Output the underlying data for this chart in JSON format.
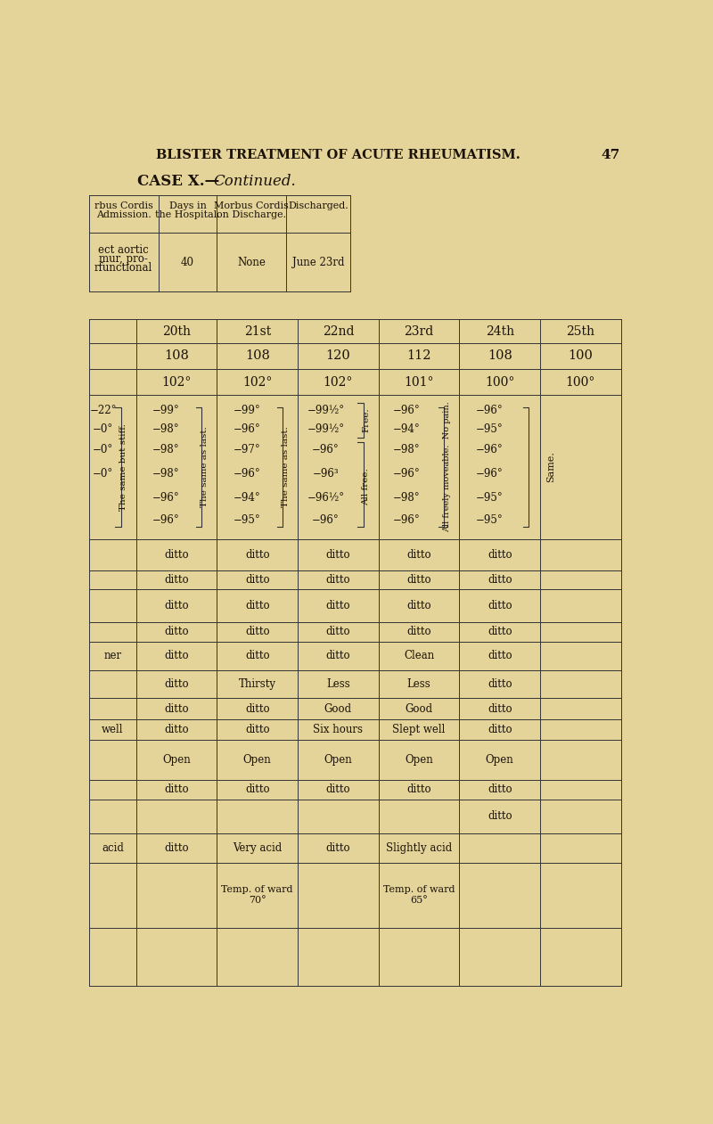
{
  "bg_color": "#e5d49a",
  "page_title": "BLISTER TREATMENT OF ACUTE RHEUMATISM.",
  "page_number": "47",
  "case_title_bold": "CASE X.—",
  "case_title_italic": "Continued.",
  "top_headers": [
    "rbus Cordis\nAdmission.",
    "Days in\nthe Hospital.",
    "Morbus Cordis\non Discharge.",
    "Discharged."
  ],
  "top_row": [
    "ect aortic\nmur, pro-\nrfunctional",
    "40",
    "None",
    "June 23rd"
  ],
  "date_headers": [
    "20th",
    "21st",
    "22nd",
    "23rd",
    "24th",
    "25th"
  ],
  "pulse_row": [
    "108",
    "108",
    "120",
    "112",
    "108",
    "100"
  ],
  "temp_row": [
    "102°",
    "102°",
    "102°",
    "101°",
    "100°",
    "100°"
  ],
  "col20_temps": [
    "−22°",
    "−0°",
    "−0°",
    "−0°",
    " ",
    " "
  ],
  "col21_temps": [
    "−99°",
    "−98°",
    "−98°",
    "−98°",
    "−96°",
    "−96°"
  ],
  "col21_note": "The same but stiff.",
  "col22_temps": [
    "−99°",
    "−96°",
    "−97°",
    "−96°",
    "−94°",
    "−95°"
  ],
  "col22_note": "The same as last.",
  "col23_temps": [
    "−99½°",
    "−99½°",
    "−96°",
    "−96³",
    "−96½°",
    "−96°"
  ],
  "col23_note": "The same as last.",
  "col23_aside1": "Free.",
  "col23_aside2": "All free.",
  "col24_temps": [
    "−96°",
    "−94°",
    "−98°",
    "−96°",
    "−98°",
    "−96°"
  ],
  "col24_note": "All freely moveable.  No pain.",
  "col25_temps": [
    "−96°",
    "−95°",
    "−96°",
    "−96°",
    "−95°",
    "−95°"
  ],
  "col25_note": "Same.",
  "lower_rows": [
    [
      "",
      "ditto",
      "ditto",
      "ditto",
      "ditto",
      "ditto"
    ],
    [
      "",
      "ditto",
      "ditto",
      "ditto",
      "ditto",
      "ditto"
    ],
    [
      "ner",
      "ditto",
      "ditto",
      "ditto",
      "Clean",
      "ditto"
    ],
    [
      "",
      "ditto",
      "Thirsty",
      "Less",
      "Less",
      "ditto"
    ],
    [
      "",
      "ditto",
      "ditto",
      "Good",
      "Good",
      "ditto"
    ],
    [
      "well",
      "ditto",
      "ditto",
      "Six hours",
      "Slept well",
      "ditto"
    ],
    [
      "",
      "Open",
      "Open",
      "Open",
      "Open",
      "Open"
    ],
    [
      "",
      "ditto",
      "ditto",
      "ditto",
      "ditto",
      "ditto"
    ],
    [
      "",
      "",
      "",
      "",
      "",
      "ditto"
    ],
    [
      "acid",
      "ditto",
      "Very acid",
      "ditto",
      "Slightly acid",
      ""
    ],
    [
      "",
      "",
      "Temp. of ward\n70°",
      "",
      "Temp. of ward\n65°",
      ""
    ]
  ]
}
